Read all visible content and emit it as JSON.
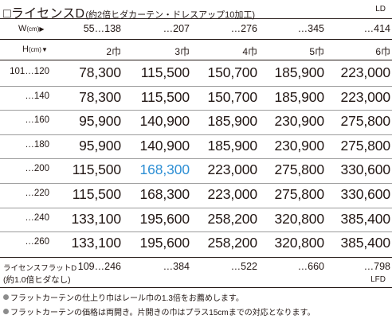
{
  "header": {
    "title": "□ライセンスD",
    "subtitle": "(約2倍ヒダカーテン・ドレスアップ10加工)",
    "code": "LD"
  },
  "table": {
    "w_label": "W",
    "w_unit": "(cm)",
    "w_arrow": "▶",
    "h_label": "H",
    "h_unit": "(cm)",
    "h_arrow": "▼",
    "widths": [
      "55…138",
      "…207",
      "…276",
      "…345",
      "…414"
    ],
    "fuku": [
      "2巾",
      "3巾",
      "4巾",
      "5巾",
      "6巾"
    ],
    "rows": [
      {
        "label": "101…120",
        "prices": [
          "78,300",
          "115,500",
          "150,700",
          "185,900",
          "223,000"
        ]
      },
      {
        "label": "…140",
        "prices": [
          "78,300",
          "115,500",
          "150,700",
          "185,900",
          "223,000"
        ]
      },
      {
        "label": "…160",
        "prices": [
          "95,900",
          "140,900",
          "185,900",
          "230,900",
          "275,800"
        ]
      },
      {
        "label": "…180",
        "prices": [
          "95,900",
          "140,900",
          "185,900",
          "230,900",
          "275,800"
        ]
      },
      {
        "label": "…200",
        "prices": [
          "115,500",
          "168,300",
          "223,000",
          "275,800",
          "330,600"
        ]
      },
      {
        "label": "…220",
        "prices": [
          "115,500",
          "168,300",
          "223,000",
          "275,800",
          "330,600"
        ]
      },
      {
        "label": "…240",
        "prices": [
          "133,100",
          "195,600",
          "258,200",
          "320,800",
          "385,400"
        ]
      },
      {
        "label": "…260",
        "prices": [
          "133,100",
          "195,600",
          "258,200",
          "320,800",
          "385,400"
        ]
      }
    ],
    "highlight_color": "#2e8fd4"
  },
  "flat": {
    "label": "ライセンスフラットD",
    "note": "(約1.0倍ヒダなし)",
    "widths": [
      "109…246",
      "…384",
      "…522",
      "…660",
      "…798"
    ],
    "code": "LFD"
  },
  "notes": [
    "フラットカーテンの仕上り巾はレール巾の1.3倍をお薦めします。",
    "フラットカーテンの価格は両開き。片開きの巾はプラス15cmまでの対応となります。"
  ]
}
